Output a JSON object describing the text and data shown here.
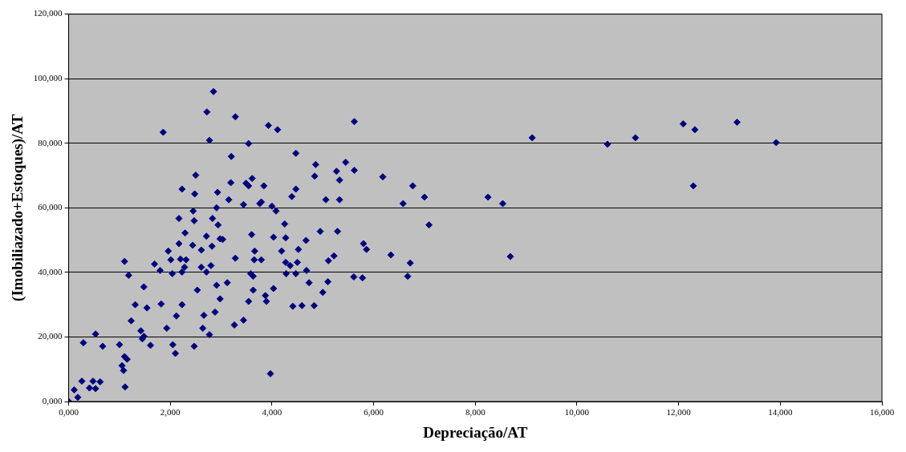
{
  "chart_data": {
    "type": "scatter",
    "xlabel": "Depreciação/AT",
    "ylabel": "(Imobiliazado+Estoques)/AT",
    "x": [
      0,
      0.11,
      0.18,
      0.26,
      0.29,
      0.41,
      0.48,
      0.53,
      0.53,
      0.62,
      0.67,
      1.0,
      1.05,
      1.08,
      1.1,
      1.1,
      1.11,
      1.15,
      1.18,
      1.23,
      1.31,
      1.42,
      1.45,
      1.48,
      1.48,
      1.54,
      1.61,
      1.69,
      1.8,
      1.82,
      1.86,
      1.93,
      1.96,
      2.01,
      2.04,
      2.05,
      2.1,
      2.12,
      2.17,
      2.17,
      2.2,
      2.23,
      2.23,
      2.23,
      2.28,
      2.29,
      2.31,
      2.44,
      2.45,
      2.47,
      2.47,
      2.48,
      2.5,
      2.53,
      2.61,
      2.61,
      2.64,
      2.66,
      2.71,
      2.71,
      2.72,
      2.77,
      2.85,
      3.28,
      3.93,
      4.11,
      3.54,
      3.2,
      4.47,
      4.86,
      4.84,
      5.27,
      5.33,
      3.19,
      3.49,
      3.54,
      3.61,
      3.84,
      4.47,
      4.39,
      2.93,
      3.15,
      3.44,
      3.76,
      3.79,
      4.0,
      4.08,
      5.06,
      5.33,
      2.91,
      2.83,
      2.94,
      2.98,
      3.03,
      3.6,
      4.03,
      4.25,
      4.27,
      4.67,
      4.95,
      5.29,
      2.82,
      3.66,
      4.19,
      4.52,
      5.22,
      5.11,
      3.28,
      3.65,
      3.79,
      4.27,
      4.36,
      4.5,
      2.8,
      3.58,
      3.63,
      4.28,
      4.47,
      4.68,
      5.1,
      4.73,
      3.12,
      2.91,
      3.63,
      4.03,
      5.0,
      3.87,
      2.98,
      3.54,
      3.89,
      4.41,
      4.59,
      4.83,
      2.88,
      2.77,
      3.26,
      3.44,
      3.97,
      5.62,
      5.45,
      5.62,
      6.18,
      6.77,
      7.0,
      6.58,
      7.09,
      5.8,
      5.86,
      6.34,
      6.72,
      5.61,
      5.78,
      6.67,
      8.25,
      8.54,
      8.69,
      9.12,
      10.6,
      11.15,
      12.09,
      12.32,
      12.29,
      13.15,
      13.92
    ],
    "values": [
      0,
      3.6,
      1.3,
      6.3,
      18.2,
      4.2,
      6.3,
      20.9,
      4.0,
      6.1,
      17.1,
      17.6,
      11.1,
      9.6,
      13.9,
      43.4,
      4.5,
      13.1,
      39.1,
      25.0,
      30.0,
      21.9,
      19.4,
      20.2,
      35.5,
      29.0,
      17.4,
      42.6,
      40.6,
      30.2,
      83.4,
      22.7,
      46.6,
      43.9,
      39.6,
      17.6,
      14.9,
      26.5,
      56.7,
      48.9,
      44.1,
      40.1,
      30.0,
      65.8,
      41.6,
      52.2,
      43.9,
      48.4,
      59.0,
      56.0,
      17.1,
      64.3,
      70.1,
      34.5,
      46.9,
      41.6,
      22.7,
      26.7,
      40.1,
      51.2,
      89.7,
      80.9,
      96.0,
      88.2,
      85.5,
      84.2,
      79.9,
      75.9,
      76.9,
      73.4,
      69.8,
      71.3,
      68.6,
      67.8,
      67.6,
      66.8,
      69.1,
      66.8,
      65.8,
      63.5,
      64.8,
      62.5,
      61.0,
      61.3,
      61.8,
      60.5,
      59.0,
      62.5,
      62.5,
      60.0,
      56.7,
      54.7,
      50.4,
      50.2,
      51.7,
      50.9,
      55.0,
      50.7,
      49.9,
      52.7,
      52.7,
      48.1,
      46.6,
      46.6,
      47.1,
      45.1,
      43.6,
      44.4,
      43.9,
      43.9,
      43.1,
      42.1,
      43.1,
      42.1,
      39.6,
      38.8,
      39.6,
      39.6,
      40.6,
      37.1,
      36.8,
      36.8,
      36.0,
      34.5,
      35.0,
      33.8,
      32.8,
      31.8,
      31.0,
      31.0,
      29.5,
      29.7,
      29.7,
      27.7,
      20.7,
      23.7,
      25.2,
      8.6,
      86.7,
      74.1,
      71.6,
      69.6,
      66.8,
      63.3,
      61.3,
      54.7,
      48.9,
      47.1,
      45.4,
      42.9,
      38.6,
      38.3,
      38.8,
      63.3,
      61.3,
      44.9,
      81.7,
      79.7,
      81.7,
      86.0,
      84.2,
      66.8,
      86.5,
      80.2
    ],
    "color": "#000080",
    "marker": "diamond",
    "grid": "y",
    "legend": false,
    "xlim": [
      0,
      16
    ],
    "xticks": [
      {
        "value": 0,
        "label": "0,000"
      },
      {
        "value": 2,
        "label": "2,000"
      },
      {
        "value": 4,
        "label": "4,000"
      },
      {
        "value": 6,
        "label": "6,000"
      },
      {
        "value": 8,
        "label": "8,000"
      },
      {
        "value": 10,
        "label": "10,000"
      },
      {
        "value": 12,
        "label": "12,000"
      },
      {
        "value": 14,
        "label": "14,000"
      },
      {
        "value": 16,
        "label": "16,000"
      }
    ],
    "ylim": [
      0,
      120
    ],
    "yticks": [
      {
        "value": 0,
        "label": "0,000"
      },
      {
        "value": 20,
        "label": "20,000"
      },
      {
        "value": 40,
        "label": "40,000"
      },
      {
        "value": 60,
        "label": "60,000"
      },
      {
        "value": 80,
        "label": "80,000"
      },
      {
        "value": 100,
        "label": "100,000"
      },
      {
        "value": 120,
        "label": "120,000"
      }
    ]
  }
}
